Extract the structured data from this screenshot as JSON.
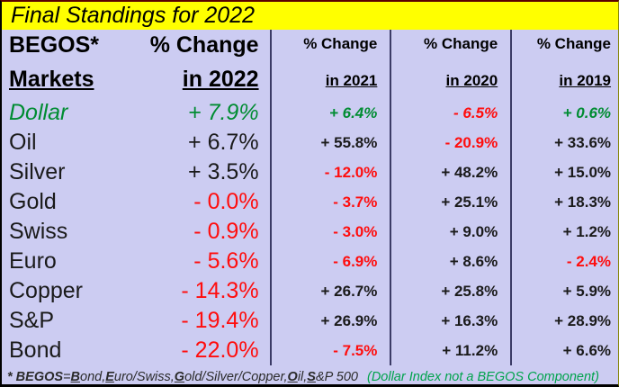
{
  "title": "Final Standings for 2022",
  "colors": {
    "black": "#1a1a1a",
    "red": "#FF0D0D",
    "green": "#008C32",
    "note_green": "#00A34C",
    "background": "#CCCCF2",
    "title_background": "#FFFF00",
    "divider": "#3b3b66"
  },
  "columns": [
    {
      "name": "labels",
      "kind": "labels",
      "header_line1": "BEGOS*",
      "header_line2": "Markets",
      "cells": [
        {
          "text": "Dollar",
          "color": "green",
          "italic": true
        },
        {
          "text": "Oil",
          "color": "black",
          "italic": false
        },
        {
          "text": "Silver",
          "color": "black",
          "italic": false
        },
        {
          "text": "Gold",
          "color": "black",
          "italic": false
        },
        {
          "text": "Swiss",
          "color": "black",
          "italic": false
        },
        {
          "text": "Euro",
          "color": "black",
          "italic": false
        },
        {
          "text": "Copper",
          "color": "black",
          "italic": false
        },
        {
          "text": "S&P",
          "color": "black",
          "italic": false
        },
        {
          "text": "Bond",
          "color": "black",
          "italic": false
        }
      ]
    },
    {
      "name": "change-2022",
      "kind": "big",
      "header_line1": "% Change",
      "header_line2": "in 2022",
      "cells": [
        {
          "text": "+ 7.9%",
          "color": "green",
          "italic": true
        },
        {
          "text": "+ 6.7%",
          "color": "black",
          "italic": false
        },
        {
          "text": "+ 3.5%",
          "color": "black",
          "italic": false
        },
        {
          "text": "- 0.0%",
          "color": "red",
          "italic": false
        },
        {
          "text": "- 0.9%",
          "color": "red",
          "italic": false
        },
        {
          "text": "- 5.6%",
          "color": "red",
          "italic": false
        },
        {
          "text": "- 14.3%",
          "color": "red",
          "italic": false
        },
        {
          "text": "- 19.4%",
          "color": "red",
          "italic": false
        },
        {
          "text": "- 22.0%",
          "color": "red",
          "italic": false
        }
      ]
    },
    {
      "name": "change-2021",
      "kind": "small",
      "header_line1": "% Change",
      "header_line2": "in 2021",
      "cells": [
        {
          "text": "+ 6.4%",
          "color": "green",
          "italic": true
        },
        {
          "text": "+ 55.8%",
          "color": "black",
          "italic": false
        },
        {
          "text": "- 12.0%",
          "color": "red",
          "italic": false
        },
        {
          "text": "- 3.7%",
          "color": "red",
          "italic": false
        },
        {
          "text": "- 3.0%",
          "color": "red",
          "italic": false
        },
        {
          "text": "- 6.9%",
          "color": "red",
          "italic": false
        },
        {
          "text": "+ 26.7%",
          "color": "black",
          "italic": false
        },
        {
          "text": "+ 26.9%",
          "color": "black",
          "italic": false
        },
        {
          "text": "- 7.5%",
          "color": "red",
          "italic": false
        }
      ]
    },
    {
      "name": "change-2020",
      "kind": "small",
      "header_line1": "% Change",
      "header_line2": "in 2020",
      "cells": [
        {
          "text": "- 6.5%",
          "color": "red",
          "italic": true
        },
        {
          "text": "- 20.9%",
          "color": "red",
          "italic": false
        },
        {
          "text": "+ 48.2%",
          "color": "black",
          "italic": false
        },
        {
          "text": "+ 25.1%",
          "color": "black",
          "italic": false
        },
        {
          "text": "+ 9.0%",
          "color": "black",
          "italic": false
        },
        {
          "text": "+ 8.6%",
          "color": "black",
          "italic": false
        },
        {
          "text": "+ 25.8%",
          "color": "black",
          "italic": false
        },
        {
          "text": "+ 16.3%",
          "color": "black",
          "italic": false
        },
        {
          "text": "+ 11.2%",
          "color": "black",
          "italic": false
        }
      ]
    },
    {
      "name": "change-2019",
      "kind": "small",
      "header_line1": "% Change",
      "header_line2": "in 2019",
      "cells": [
        {
          "text": "+ 0.6%",
          "color": "green",
          "italic": true
        },
        {
          "text": "+ 33.6%",
          "color": "black",
          "italic": false
        },
        {
          "text": "+ 15.0%",
          "color": "black",
          "italic": false
        },
        {
          "text": "+ 18.3%",
          "color": "black",
          "italic": false
        },
        {
          "text": "+ 1.2%",
          "color": "black",
          "italic": false
        },
        {
          "text": "- 2.4%",
          "color": "red",
          "italic": false
        },
        {
          "text": "+ 5.9%",
          "color": "black",
          "italic": false
        },
        {
          "text": "+ 28.9%",
          "color": "black",
          "italic": false
        },
        {
          "text": "+ 6.6%",
          "color": "black",
          "italic": false
        }
      ]
    }
  ],
  "footnote": {
    "prefix": "* BEGOS",
    "equals": " = ",
    "terms": [
      {
        "lead": "B",
        "rest": "ond, "
      },
      {
        "lead": "E",
        "rest": "uro/Swiss, "
      },
      {
        "lead": "G",
        "rest": "old/Silver/Copper, "
      },
      {
        "lead": "O",
        "rest": "il, "
      },
      {
        "lead": "S",
        "rest": "&P 500"
      }
    ],
    "note": "(Dollar Index not a BEGOS Component)"
  },
  "chart_data": {
    "type": "table",
    "title": "Final Standings for 2022",
    "categories": [
      "Dollar",
      "Oil",
      "Silver",
      "Gold",
      "Swiss",
      "Euro",
      "Copper",
      "S&P",
      "Bond"
    ],
    "series": [
      {
        "name": "% Change in 2022",
        "values": [
          7.9,
          6.7,
          3.5,
          -0.0,
          -0.9,
          -5.6,
          -14.3,
          -19.4,
          -22.0
        ]
      },
      {
        "name": "% Change in 2021",
        "values": [
          6.4,
          55.8,
          -12.0,
          -3.7,
          -3.0,
          -6.9,
          26.7,
          26.9,
          -7.5
        ]
      },
      {
        "name": "% Change in 2020",
        "values": [
          -6.5,
          -20.9,
          48.2,
          25.1,
          9.0,
          8.6,
          25.8,
          16.3,
          11.2
        ]
      },
      {
        "name": "% Change in 2019",
        "values": [
          0.6,
          33.6,
          15.0,
          18.3,
          1.2,
          -2.4,
          5.9,
          28.9,
          6.6
        ]
      }
    ],
    "unit": "%",
    "notes": "Dollar row shown in italics because the Dollar Index is not a BEGOS component; positive values black/green, negative values red"
  }
}
